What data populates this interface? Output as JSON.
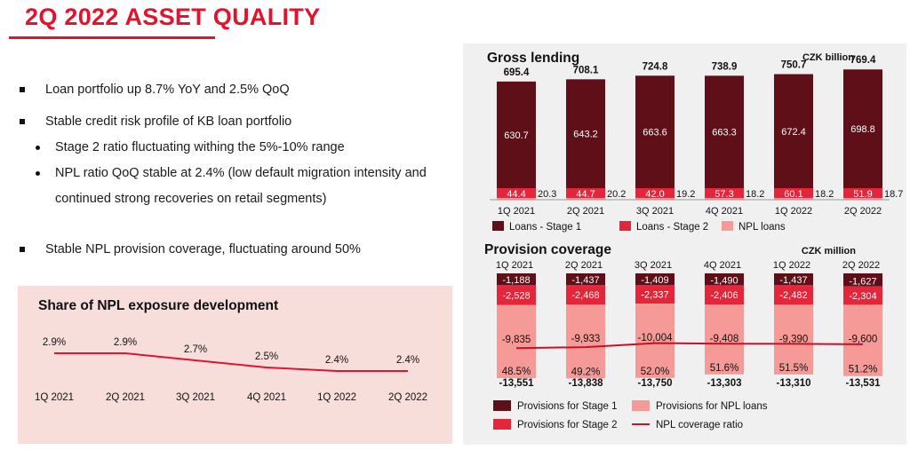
{
  "title": "2Q 2022 ASSET QUALITY",
  "bullets": [
    {
      "text": "Loan portfolio up 8.7% YoY and 2.5% QoQ",
      "level": 1
    },
    {
      "text": "Stable credit risk profile of KB loan portfolio",
      "level": 1
    },
    {
      "text": "Stage 2 ratio fluctuating withing the 5%-10% range",
      "level": 2
    },
    {
      "text": "NPL ratio QoQ stable at 2.4% (low default migration intensity and",
      "level": 2
    },
    {
      "text": "continued strong recoveries on retail segments)",
      "level": 2
    },
    {
      "text": "Stable NPL provision coverage, fluctuating around 50%",
      "level": 1
    }
  ],
  "chart_data": [
    {
      "id": "npl-share",
      "type": "line",
      "title": "Share of NPL exposure development",
      "categories": [
        "1Q 2021",
        "2Q 2021",
        "3Q 2021",
        "4Q 2021",
        "1Q 2022",
        "2Q 2022"
      ],
      "values": [
        2.9,
        2.9,
        2.7,
        2.5,
        2.4,
        2.4
      ],
      "value_labels": [
        "2.9%",
        "2.9%",
        "2.7%",
        "2.5%",
        "2.4%",
        "2.4%"
      ],
      "color": "#e3122d"
    },
    {
      "id": "gross-lending",
      "type": "bar",
      "title": "Gross lending",
      "unit": "CZK billion",
      "categories": [
        "1Q 2021",
        "2Q 2021",
        "3Q 2021",
        "4Q 2021",
        "1Q 2022",
        "2Q 2022"
      ],
      "totals": [
        "695.4",
        "708.1",
        "724.8",
        "738.9",
        "750.7",
        "769.4"
      ],
      "series": [
        {
          "name": "Loans - Stage 1",
          "color": "#5e0f17",
          "values": [
            630.7,
            643.2,
            663.6,
            663.3,
            672.4,
            698.8
          ]
        },
        {
          "name": "Loans - Stage 2",
          "color": "#e3263a",
          "values": [
            44.4,
            44.7,
            42.0,
            57.3,
            60.1,
            51.9
          ]
        },
        {
          "name": "NPL loans",
          "color": "#f59a97",
          "values": [
            20.3,
            20.2,
            19.2,
            18.2,
            18.2,
            18.7
          ]
        }
      ],
      "labels": {
        "stage1": [
          "630.7",
          "643.2",
          "663.6",
          "663.3",
          "672.4",
          "698.8"
        ],
        "stage2": [
          "44.4",
          "44.7",
          "42.0",
          "57.3",
          "60.1",
          "51.9"
        ],
        "npl": [
          "20.3",
          "20.2",
          "19.2",
          "18.2",
          "18.2",
          "18.7"
        ]
      }
    },
    {
      "id": "provision-coverage",
      "type": "bar",
      "title": "Provision coverage",
      "unit": "CZK million",
      "categories": [
        "1Q 2021",
        "2Q 2021",
        "3Q 2021",
        "4Q 2021",
        "1Q 2022",
        "2Q 2022"
      ],
      "totals": [
        "-13,551",
        "-13,838",
        "-13,750",
        "-13,303",
        "-13,310",
        "-13,531"
      ],
      "series": [
        {
          "name": "Provisions for Stage 1",
          "color": "#5e0f17",
          "values": [
            -1188,
            -1437,
            -1409,
            -1490,
            -1437,
            -1627
          ]
        },
        {
          "name": "Provisions for Stage 2",
          "color": "#e3263a",
          "values": [
            -2528,
            -2468,
            -2337,
            -2406,
            -2482,
            -2304
          ]
        },
        {
          "name": "Provisions for NPL loans",
          "color": "#f59a97",
          "values": [
            -9835,
            -9933,
            -10004,
            -9408,
            -9390,
            -9600
          ]
        },
        {
          "name": "NPL coverage ratio",
          "type": "line",
          "color": "#c8102e",
          "values": [
            48.5,
            49.2,
            52.0,
            51.6,
            51.5,
            51.2
          ]
        }
      ],
      "labels": {
        "stage1": [
          "-1,188",
          "-1,437",
          "-1,409",
          "-1,490",
          "-1,437",
          "-1,627"
        ],
        "stage2": [
          "-2,528",
          "-2,468",
          "-2,337",
          "-2,406",
          "-2,482",
          "-2,304"
        ],
        "npl": [
          "-9,835",
          "-9,933",
          "-10,004",
          "-9,408",
          "-9,390",
          "-9,600"
        ],
        "ratio": [
          "48.5%",
          "49.2%",
          "52.0%",
          "51.6%",
          "51.5%",
          "51.2%"
        ]
      }
    }
  ]
}
